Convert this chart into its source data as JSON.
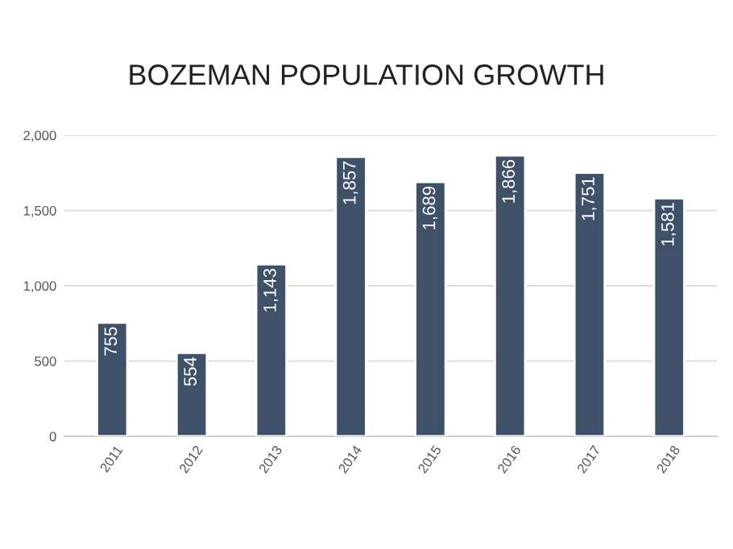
{
  "chart_data": {
    "type": "bar",
    "title": "BOZEMAN POPULATION GROWTH",
    "categories": [
      "2011",
      "2012",
      "2013",
      "2014",
      "2015",
      "2016",
      "2017",
      "2018"
    ],
    "values": [
      755,
      554,
      1143,
      1857,
      1689,
      1866,
      1751,
      1581
    ],
    "color": "#3e5169",
    "ylim": [
      0,
      2000
    ],
    "yticks": [
      0,
      {
        "value": 500,
        "label": "500"
      },
      {
        "value": 1000,
        "label": "1,000"
      },
      {
        "value": 1500,
        "label": "1,500"
      },
      {
        "value": 2000,
        "label": "2,000"
      }
    ],
    "value_labels": [
      "755",
      "554",
      "1,143",
      "1,857",
      "1,689",
      "1,866",
      "1,751",
      "1,581"
    ],
    "grid": "y",
    "legend": false
  }
}
